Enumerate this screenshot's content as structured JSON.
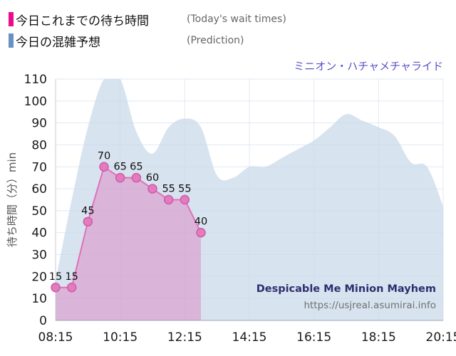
{
  "legend": {
    "items": [
      {
        "label": "今日これまでの待ち時間",
        "sub": "(Today's wait times)",
        "color": "#ec0a8e"
      },
      {
        "label": "今日の混雑予想",
        "sub": "(Prediction)",
        "color": "#6691c2"
      }
    ]
  },
  "chart_data": {
    "type": "area",
    "title": "ミニオン・ハチャメチャライド",
    "ylabel": "待ち時間（分）min",
    "ylim": [
      0,
      110
    ],
    "yticks": [
      0,
      10,
      20,
      30,
      40,
      50,
      60,
      70,
      80,
      90,
      100,
      110
    ],
    "x_start_hour": 8.25,
    "x_end_hour": 20.25,
    "xticks": [
      {
        "hour": 8.25,
        "label": "08:15"
      },
      {
        "hour": 10.25,
        "label": "10:15"
      },
      {
        "hour": 12.25,
        "label": "12:15"
      },
      {
        "hour": 14.25,
        "label": "14:15"
      },
      {
        "hour": 16.25,
        "label": "16:15"
      },
      {
        "hour": 18.25,
        "label": "18:15"
      },
      {
        "hour": 20.25,
        "label": "20:15"
      }
    ],
    "series": [
      {
        "name": "今日の混雑予想",
        "kind": "prediction-area",
        "fill": "#c9d9e9",
        "fill_opacity": 0.75,
        "hours": [
          8.25,
          8.75,
          9.25,
          9.75,
          10.25,
          10.75,
          11.25,
          11.75,
          12.25,
          12.75,
          13.25,
          13.75,
          14.25,
          14.75,
          15.25,
          15.75,
          16.25,
          16.75,
          17.25,
          17.75,
          18.25,
          18.75,
          19.25,
          19.75,
          20.25
        ],
        "values": [
          18,
          55,
          88,
          110,
          110,
          86,
          76,
          88,
          92,
          88,
          66,
          65,
          70,
          70,
          74,
          78,
          82,
          88,
          94,
          91,
          88,
          84,
          72,
          70,
          52
        ]
      },
      {
        "name": "今日これまでの待ち時間",
        "kind": "actual-area-line-markers",
        "fill": "#e06ab6",
        "fill_opacity": 0.38,
        "line": "#e071ba",
        "marker_fill": "#e37cbe",
        "marker_stroke": "#cf5ca8",
        "hours": [
          8.25,
          8.75,
          9.25,
          9.75,
          10.25,
          10.75,
          11.25,
          11.75,
          12.25,
          12.75
        ],
        "values": [
          15,
          15,
          45,
          70,
          65,
          65,
          60,
          55,
          55,
          40
        ]
      }
    ],
    "watermark": [
      "Despicable Me Minion Mayhem",
      "https://usjreal.asumirai.info"
    ],
    "watermark_colors": [
      "#2e2e6e",
      "#707070"
    ],
    "grid_color": "#e2e8f2",
    "axis_color": "#9aa4b0",
    "left_axis_color": "#c8cdd6",
    "tick_color": "#1a1a1a",
    "point_label_color": "#111111"
  }
}
